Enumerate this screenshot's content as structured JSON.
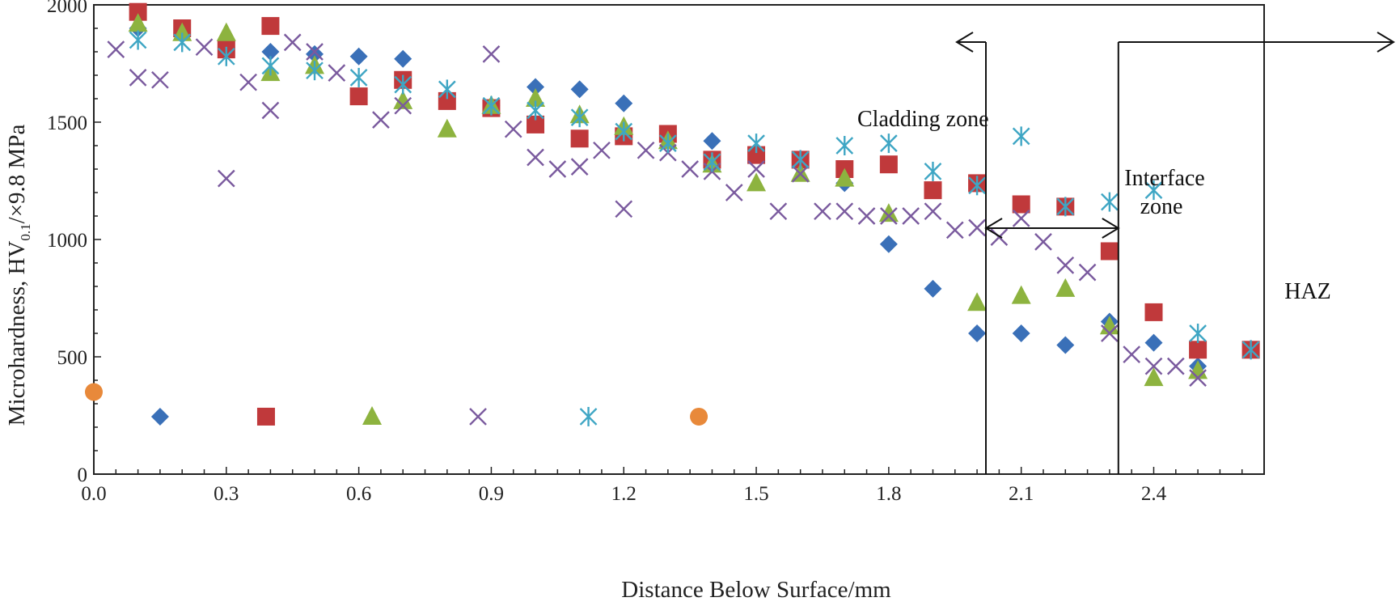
{
  "chart_data": {
    "type": "scatter",
    "xlabel": "Distance Below Surface/mm",
    "ylabel_main": "Microhardness, HV",
    "ylabel_sub": "0.1",
    "ylabel_tail": "/×9.8 MPa",
    "xlim": [
      0.0,
      2.65
    ],
    "ylim": [
      0,
      2000
    ],
    "xticks": [
      "0.0",
      "0.3",
      "0.6",
      "0.9",
      "1.2",
      "1.5",
      "1.8",
      "2.1",
      "2.4"
    ],
    "yticks": [
      "0",
      "500",
      "1000",
      "1500",
      "2000"
    ],
    "grid": false,
    "legend": "bottom-left, inside plot, unlabeled markers",
    "annotations": {
      "cladding": "Cladding zone",
      "interface_line1": "Interface",
      "interface_line2": "zone",
      "haz": "HAZ"
    },
    "zone_boundaries_mm": [
      2.02,
      2.32
    ],
    "series": [
      {
        "marker": "diamond",
        "color": "#3a70b8",
        "x": [
          0.1,
          0.2,
          0.3,
          0.4,
          0.5,
          0.6,
          0.7,
          0.8,
          0.9,
          1.0,
          1.1,
          1.2,
          1.3,
          1.4,
          1.5,
          1.6,
          1.7,
          1.8,
          1.9,
          2.0,
          2.1,
          2.2,
          2.3,
          2.4,
          2.5
        ],
        "y": [
          1900,
          1880,
          1820,
          1800,
          1790,
          1780,
          1770,
          1600,
          1570,
          1650,
          1640,
          1580,
          1450,
          1420,
          1370,
          1330,
          1240,
          980,
          790,
          600,
          600,
          550,
          650,
          560,
          460
        ]
      },
      {
        "marker": "square",
        "color": "#c0393b",
        "x": [
          0.1,
          0.2,
          0.3,
          0.4,
          0.6,
          0.7,
          0.8,
          0.9,
          1.0,
          1.1,
          1.2,
          1.3,
          1.4,
          1.5,
          1.6,
          1.7,
          1.8,
          1.9,
          2.0,
          2.1,
          2.2,
          2.3,
          2.4,
          2.5,
          2.62
        ],
        "y": [
          1970,
          1900,
          1810,
          1910,
          1610,
          1680,
          1590,
          1560,
          1490,
          1430,
          1440,
          1450,
          1340,
          1360,
          1340,
          1300,
          1320,
          1210,
          1240,
          1150,
          1140,
          950,
          690,
          530,
          530
        ]
      },
      {
        "marker": "triangle",
        "color": "#8db33f",
        "x": [
          0.1,
          0.2,
          0.3,
          0.4,
          0.5,
          0.7,
          0.8,
          0.9,
          1.0,
          1.1,
          1.2,
          1.3,
          1.4,
          1.5,
          1.6,
          1.7,
          1.8,
          2.0,
          2.1,
          2.2,
          2.3,
          2.4,
          2.5
        ],
        "y": [
          1920,
          1880,
          1880,
          1710,
          1740,
          1590,
          1470,
          1570,
          1600,
          1530,
          1480,
          1420,
          1320,
          1240,
          1280,
          1260,
          1110,
          730,
          760,
          790,
          630,
          410,
          440
        ]
      },
      {
        "marker": "x",
        "color": "#7a5a9e",
        "x": [
          0.05,
          0.1,
          0.15,
          0.25,
          0.3,
          0.35,
          0.4,
          0.45,
          0.5,
          0.55,
          0.65,
          0.7,
          0.9,
          0.95,
          1.0,
          1.05,
          1.1,
          1.15,
          1.2,
          1.25,
          1.3,
          1.35,
          1.4,
          1.45,
          1.5,
          1.55,
          1.6,
          1.65,
          1.7,
          1.75,
          1.8,
          1.85,
          1.9,
          1.95,
          2.0,
          2.05,
          2.1,
          2.15,
          2.2,
          2.25,
          2.3,
          2.35,
          2.4,
          2.45,
          2.5
        ],
        "y": [
          1810,
          1690,
          1680,
          1820,
          1260,
          1670,
          1550,
          1840,
          1800,
          1710,
          1510,
          1570,
          1790,
          1470,
          1350,
          1300,
          1310,
          1380,
          1130,
          1380,
          1370,
          1300,
          1290,
          1200,
          1300,
          1120,
          1280,
          1120,
          1120,
          1100,
          1100,
          1100,
          1120,
          1040,
          1050,
          1010,
          1090,
          990,
          890,
          860,
          600,
          510,
          460,
          460,
          410
        ]
      },
      {
        "marker": "asterisk",
        "color": "#3fa6c4",
        "x": [
          0.1,
          0.2,
          0.3,
          0.4,
          0.5,
          0.6,
          0.7,
          0.8,
          0.9,
          1.0,
          1.1,
          1.2,
          1.3,
          1.4,
          1.5,
          1.6,
          1.7,
          1.8,
          1.9,
          2.0,
          2.1,
          2.2,
          2.3,
          2.4,
          2.5,
          2.62
        ],
        "y": [
          1850,
          1840,
          1780,
          1740,
          1720,
          1690,
          1660,
          1640,
          1570,
          1550,
          1520,
          1460,
          1410,
          1330,
          1410,
          1340,
          1400,
          1410,
          1290,
          1230,
          1440,
          1140,
          1160,
          1210,
          600,
          530
        ]
      }
    ],
    "legend_markers": [
      {
        "marker": "circle",
        "color": "#e8893a",
        "x": 0.0,
        "y": 350
      },
      {
        "marker": "diamond",
        "color": "#3a70b8",
        "x": 0.15,
        "y": 245
      },
      {
        "marker": "square",
        "color": "#c0393b",
        "x": 0.39,
        "y": 245
      },
      {
        "marker": "triangle",
        "color": "#8db33f",
        "x": 0.63,
        "y": 245
      },
      {
        "marker": "x",
        "color": "#7a5a9e",
        "x": 0.87,
        "y": 245
      },
      {
        "marker": "asterisk",
        "color": "#3fa6c4",
        "x": 1.12,
        "y": 245
      },
      {
        "marker": "circle",
        "color": "#e8893a",
        "x": 1.37,
        "y": 245
      }
    ]
  }
}
